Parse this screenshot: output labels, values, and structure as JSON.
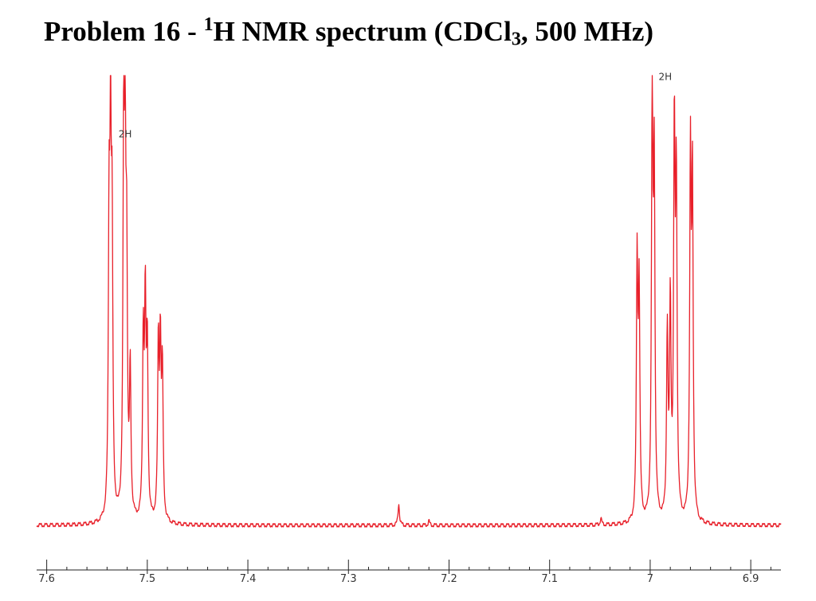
{
  "title": {
    "prefix": "Problem 16 - ",
    "superscript": "1",
    "mid": "H NMR spectrum (CDCl",
    "subscript": "3",
    "suffix": ", 500 MHz)"
  },
  "chart_data": {
    "type": "line",
    "title": "Problem 16 - 1H NMR spectrum (CDCl3, 500 MHz)",
    "xlabel": "",
    "ylabel": "",
    "xlim": [
      7.61,
      6.87
    ],
    "ylim": [
      0,
      1
    ],
    "x_direction": "decreasing",
    "grid": false,
    "line_color": "#e8202a",
    "x_ticks": [
      7.6,
      7.5,
      7.4,
      7.3,
      7.2,
      7.1,
      7,
      6.9
    ],
    "x_tick_labels": [
      "7.6",
      "7.5",
      "7.4",
      "7.3",
      "7.2",
      "7.1",
      "7",
      "6.9"
    ],
    "baseline": 0.0,
    "peaks": [
      {
        "ppm": 7.538,
        "height": 0.63
      },
      {
        "ppm": 7.5365,
        "height": 0.75
      },
      {
        "ppm": 7.535,
        "height": 0.6
      },
      {
        "ppm": 7.5235,
        "height": 0.8
      },
      {
        "ppm": 7.522,
        "height": 0.71
      },
      {
        "ppm": 7.5205,
        "height": 0.53
      },
      {
        "ppm": 7.517,
        "height": 0.33
      },
      {
        "ppm": 7.504,
        "height": 0.4
      },
      {
        "ppm": 7.502,
        "height": 0.47
      },
      {
        "ppm": 7.5,
        "height": 0.38
      },
      {
        "ppm": 7.489,
        "height": 0.39
      },
      {
        "ppm": 7.487,
        "height": 0.38
      },
      {
        "ppm": 7.485,
        "height": 0.33
      },
      {
        "ppm": 7.25,
        "height": 0.05
      },
      {
        "ppm": 7.22,
        "height": 0.01
      },
      {
        "ppm": 7.049,
        "height": 0.015
      },
      {
        "ppm": 7.013,
        "height": 0.58
      },
      {
        "ppm": 7.011,
        "height": 0.51
      },
      {
        "ppm": 6.998,
        "height": 0.94
      },
      {
        "ppm": 6.996,
        "height": 0.78
      },
      {
        "ppm": 6.983,
        "height": 0.42
      },
      {
        "ppm": 6.98,
        "height": 0.48
      },
      {
        "ppm": 6.976,
        "height": 0.86
      },
      {
        "ppm": 6.974,
        "height": 0.74
      },
      {
        "ppm": 6.96,
        "height": 0.8
      },
      {
        "ppm": 6.958,
        "height": 0.75
      }
    ],
    "annotations": [
      {
        "text": "2H",
        "ppm": 7.522,
        "height": 0.88
      },
      {
        "text": "2H",
        "ppm": 6.985,
        "height": 1.01
      }
    ]
  }
}
